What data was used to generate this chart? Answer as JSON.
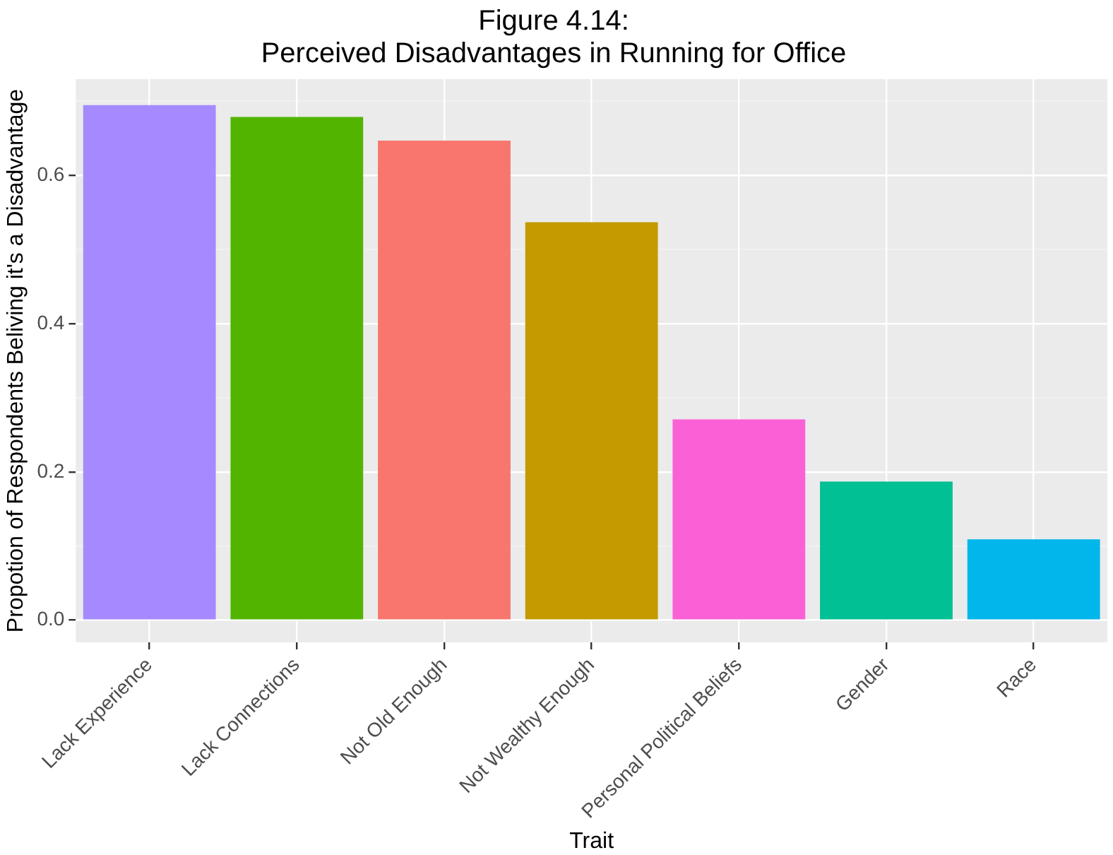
{
  "chart_data": {
    "type": "bar",
    "title": "Figure 4.14:\nPerceived Disadvantages in Running for Office",
    "xlabel": "Trait",
    "ylabel": "Propotion of Respondents Beliving it's a Disadvantage",
    "categories": [
      "Lack Experience",
      "Lack Connections",
      "Not Old Enough",
      "Not Wealthy Enough",
      "Personal Political Beliefs",
      "Gender",
      "Race"
    ],
    "values": [
      0.695,
      0.679,
      0.647,
      0.537,
      0.271,
      0.187,
      0.109
    ],
    "colors": [
      "#a58aff",
      "#53b400",
      "#f8766d",
      "#c49a00",
      "#fb61d7",
      "#00c094",
      "#00b6eb"
    ],
    "ylim": [
      -0.03,
      0.73
    ],
    "yticks": [
      {
        "value": 0,
        "label": "0.0"
      },
      {
        "value": 0.1,
        "label": null
      },
      {
        "value": 0.2,
        "label": "0.2"
      },
      {
        "value": 0.3,
        "label": null
      },
      {
        "value": 0.4,
        "label": "0.4"
      },
      {
        "value": 0.5,
        "label": null
      },
      {
        "value": 0.6,
        "label": "0.6"
      },
      {
        "value": 0.7,
        "label": null
      }
    ],
    "grid": true,
    "legend": false
  }
}
